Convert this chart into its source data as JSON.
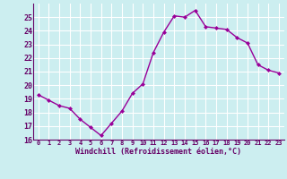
{
  "x": [
    0,
    1,
    2,
    3,
    4,
    5,
    6,
    7,
    8,
    9,
    10,
    11,
    12,
    13,
    14,
    15,
    16,
    17,
    18,
    19,
    20,
    21,
    22,
    23
  ],
  "y": [
    19.3,
    18.9,
    18.5,
    18.3,
    17.5,
    16.9,
    16.3,
    17.2,
    18.1,
    19.4,
    20.1,
    22.4,
    23.9,
    25.1,
    25.0,
    25.5,
    24.3,
    24.2,
    24.1,
    23.5,
    23.1,
    21.5,
    21.1,
    20.9
  ],
  "line_color": "#990099",
  "marker": "D",
  "marker_size": 2.0,
  "bg_color": "#cceef0",
  "grid_color": "#ffffff",
  "xlabel": "Windchill (Refroidissement éolien,°C)",
  "xlabel_color": "#660066",
  "tick_color": "#660066",
  "xlim": [
    -0.5,
    23.5
  ],
  "ylim": [
    16,
    26
  ],
  "yticks": [
    16,
    17,
    18,
    19,
    20,
    21,
    22,
    23,
    24,
    25
  ],
  "xticks": [
    0,
    1,
    2,
    3,
    4,
    5,
    6,
    7,
    8,
    9,
    10,
    11,
    12,
    13,
    14,
    15,
    16,
    17,
    18,
    19,
    20,
    21,
    22,
    23
  ],
  "xtick_labels": [
    "0",
    "1",
    "2",
    "3",
    "4",
    "5",
    "6",
    "7",
    "8",
    "9",
    "10",
    "11",
    "12",
    "13",
    "14",
    "15",
    "16",
    "17",
    "18",
    "19",
    "20",
    "21",
    "22",
    "23"
  ],
  "line_width": 1.0,
  "separator_color": "#660066"
}
